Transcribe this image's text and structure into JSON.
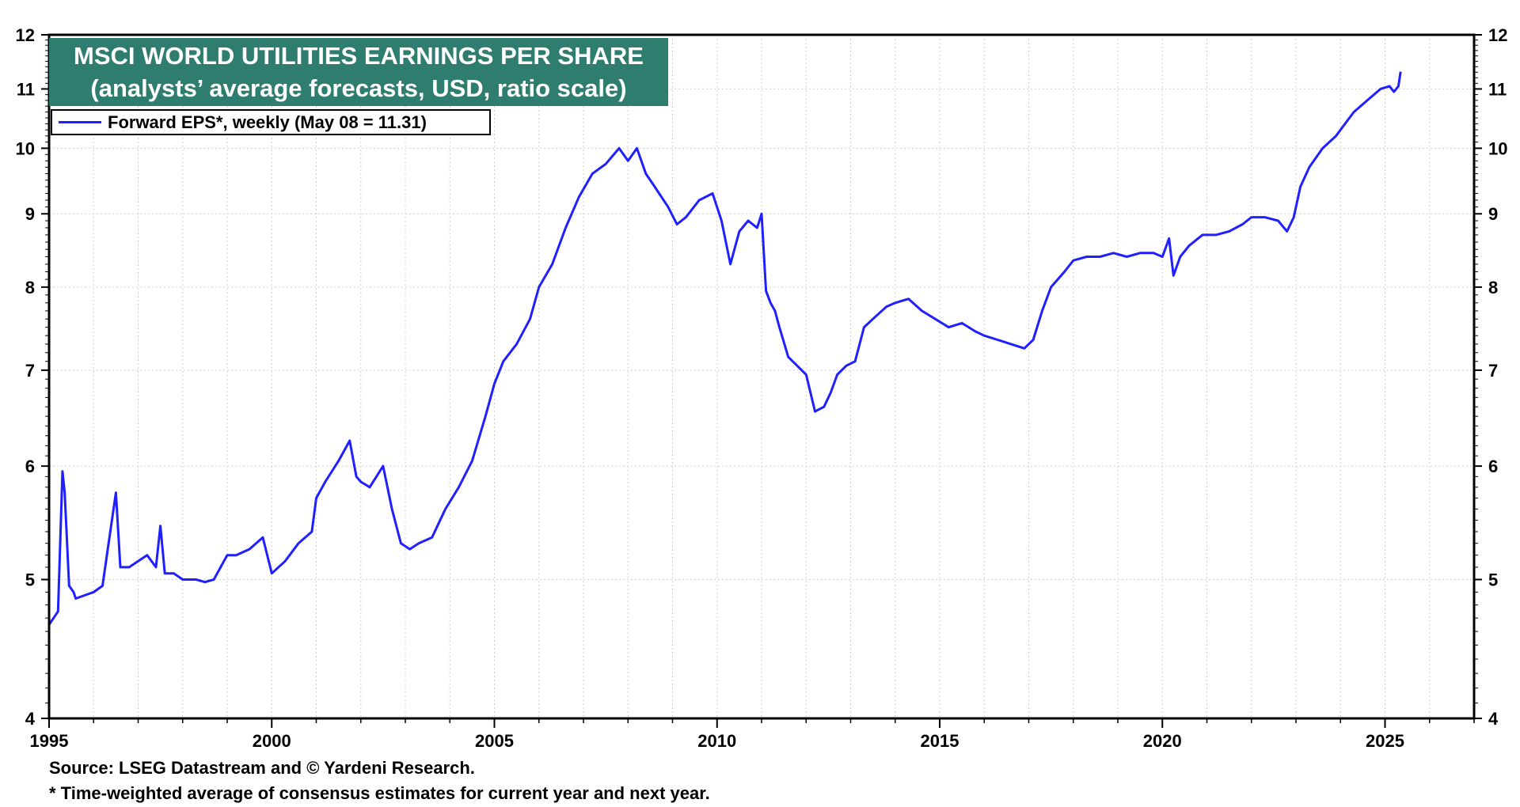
{
  "chart_data": {
    "type": "line",
    "scale": "log",
    "title": "MSCI WORLD UTILITIES EARNINGS PER SHARE",
    "subtitle": "(analysts’ average forecasts, USD, ratio scale)",
    "legend": "top-left",
    "series": [
      {
        "name": "Forward EPS*, weekly (May 08 = 11.31)",
        "color": "#1f1fff",
        "x": [
          1995.0,
          1995.2,
          1995.3,
          1995.35,
          1995.45,
          1995.55,
          1995.6,
          1996.0,
          1996.2,
          1996.5,
          1996.6,
          1996.8,
          1997.0,
          1997.2,
          1997.4,
          1997.5,
          1997.6,
          1997.8,
          1998.0,
          1998.3,
          1998.5,
          1998.7,
          1999.0,
          1999.2,
          1999.5,
          1999.8,
          2000.0,
          2000.3,
          2000.6,
          2000.9,
          2001.0,
          2001.2,
          2001.5,
          2001.75,
          2001.9,
          2002.0,
          2002.2,
          2002.5,
          2002.7,
          2002.9,
          2003.1,
          2003.3,
          2003.6,
          2003.9,
          2004.2,
          2004.5,
          2004.8,
          2005.0,
          2005.2,
          2005.5,
          2005.8,
          2006.0,
          2006.3,
          2006.6,
          2006.9,
          2007.2,
          2007.5,
          2007.8,
          2008.0,
          2008.2,
          2008.4,
          2008.6,
          2008.9,
          2009.1,
          2009.3,
          2009.6,
          2009.9,
          2010.1,
          2010.3,
          2010.5,
          2010.7,
          2010.9,
          2011.0,
          2011.1,
          2011.2,
          2011.3,
          2011.4,
          2011.6,
          2011.8,
          2012.0,
          2012.2,
          2012.4,
          2012.55,
          2012.7,
          2012.9,
          2013.1,
          2013.3,
          2013.5,
          2013.8,
          2014.0,
          2014.3,
          2014.6,
          2014.9,
          2015.2,
          2015.5,
          2015.8,
          2016.0,
          2016.3,
          2016.6,
          2016.9,
          2017.1,
          2017.3,
          2017.5,
          2017.8,
          2018.0,
          2018.3,
          2018.6,
          2018.9,
          2019.2,
          2019.5,
          2019.8,
          2020.0,
          2020.15,
          2020.25,
          2020.4,
          2020.6,
          2020.9,
          2021.2,
          2021.5,
          2021.8,
          2022.0,
          2022.3,
          2022.6,
          2022.8,
          2022.95,
          2023.1,
          2023.3,
          2023.6,
          2023.9,
          2024.1,
          2024.3,
          2024.6,
          2024.9,
          2025.1,
          2025.2,
          2025.3,
          2025.35
        ],
        "values": [
          4.65,
          4.75,
          5.95,
          5.75,
          4.95,
          4.9,
          4.85,
          4.9,
          4.95,
          5.75,
          5.1,
          5.1,
          5.15,
          5.2,
          5.1,
          5.45,
          5.05,
          5.05,
          5.0,
          5.0,
          4.98,
          5.0,
          5.2,
          5.2,
          5.25,
          5.35,
          5.05,
          5.15,
          5.3,
          5.4,
          5.7,
          5.85,
          6.05,
          6.25,
          5.9,
          5.85,
          5.8,
          6.0,
          5.6,
          5.3,
          5.25,
          5.3,
          5.35,
          5.6,
          5.8,
          6.05,
          6.5,
          6.85,
          7.1,
          7.3,
          7.6,
          8.0,
          8.3,
          8.8,
          9.25,
          9.6,
          9.75,
          10.0,
          9.8,
          10.0,
          9.6,
          9.4,
          9.1,
          8.85,
          8.95,
          9.2,
          9.3,
          8.9,
          8.3,
          8.75,
          8.9,
          8.8,
          9.0,
          7.95,
          7.8,
          7.7,
          7.5,
          7.15,
          7.05,
          6.95,
          6.55,
          6.6,
          6.75,
          6.95,
          7.05,
          7.1,
          7.5,
          7.6,
          7.75,
          7.8,
          7.85,
          7.7,
          7.6,
          7.5,
          7.55,
          7.45,
          7.4,
          7.35,
          7.3,
          7.25,
          7.35,
          7.7,
          8.0,
          8.2,
          8.35,
          8.4,
          8.4,
          8.45,
          8.4,
          8.45,
          8.45,
          8.4,
          8.65,
          8.15,
          8.4,
          8.55,
          8.7,
          8.7,
          8.75,
          8.85,
          8.95,
          8.95,
          8.9,
          8.75,
          8.95,
          9.4,
          9.7,
          10.0,
          10.2,
          10.4,
          10.6,
          10.8,
          11.0,
          11.05,
          10.95,
          11.05,
          11.31
        ]
      }
    ],
    "xlim": [
      1995,
      2027
    ],
    "xticks": [
      1995,
      2000,
      2005,
      2010,
      2015,
      2020,
      2025
    ],
    "ylim": [
      4,
      12
    ],
    "yticks": [
      4,
      5,
      6,
      7,
      8,
      9,
      10,
      11,
      12
    ],
    "grid": true,
    "xlabel": "",
    "ylabel": ""
  },
  "footnotes": {
    "source": "Source: LSEG Datastream and © Yardeni Research.",
    "note": "* Time-weighted average of consensus estimates for current year and next year."
  },
  "colors": {
    "title_bg": "#2e7d6e",
    "line": "#1f1fff"
  }
}
